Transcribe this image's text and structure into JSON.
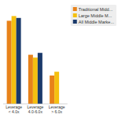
{
  "chart_data": {
    "type": "bar",
    "categories": [
      "Leverage < 4.0x",
      "Leverage 4.0-6.0x",
      "Leverage > 6.0x"
    ],
    "series": [
      {
        "name": "Traditional Midd...",
        "color": "#E8821A",
        "values": [
          0.88,
          0.52,
          0.3
        ]
      },
      {
        "name": "Large Middle M...",
        "color": "#F5C010",
        "values": [
          0.93,
          0.49,
          0.34
        ]
      },
      {
        "name": "All Middle Marke...",
        "color": "#1B3A6B",
        "values": [
          0.91,
          0.54,
          0.0
        ]
      }
    ],
    "ylim": [
      0,
      1.05
    ],
    "grid": false,
    "legend": "right",
    "tick_labels": "x"
  }
}
